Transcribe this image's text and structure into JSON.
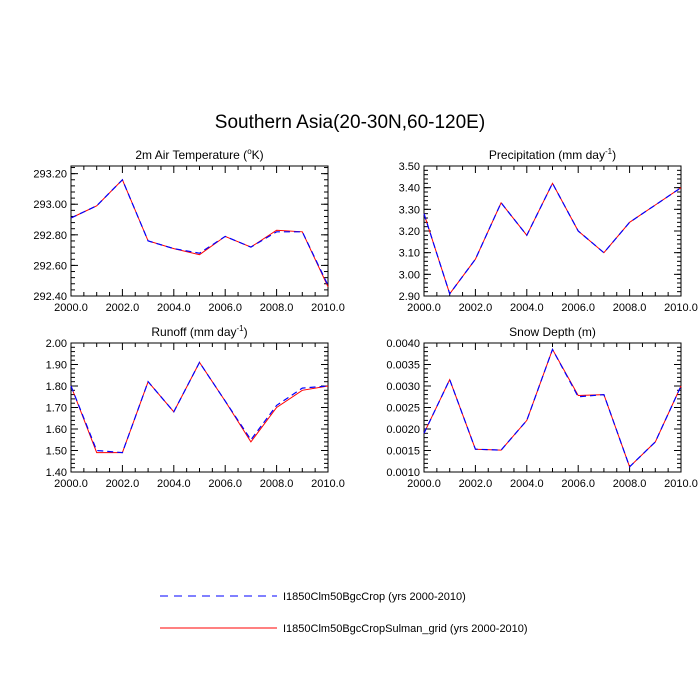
{
  "figure": {
    "title": "Southern Asia(20-30N,60-120E)",
    "legend": [
      {
        "label": "I1850Clm50BgcCrop (yrs 2000-2010)",
        "color": "#0000ff",
        "style": "dashed"
      },
      {
        "label": "I1850Clm50BgcCropSulman_grid (yrs 2000-2010)",
        "color": "#ff0000",
        "style": "solid"
      }
    ]
  },
  "chart_data": [
    {
      "type": "line",
      "title": "2m Air Temperature (°K)",
      "title_parts": [
        "2m Air Temperature (",
        "o",
        "K)"
      ],
      "x": [
        2000,
        2001,
        2002,
        2003,
        2004,
        2005,
        2006,
        2007,
        2008,
        2009,
        2010
      ],
      "xlim": [
        2000,
        2010
      ],
      "ylim": [
        292.4,
        293.25
      ],
      "xticks": [
        "2000.0",
        "2002.0",
        "2004.0",
        "2006.0",
        "2008.0",
        "2010.0"
      ],
      "yticks": [
        "292.40",
        "292.60",
        "292.80",
        "293.00",
        "293.20"
      ],
      "ytick_values": [
        292.4,
        292.6,
        292.8,
        293.0,
        293.2
      ],
      "series": [
        {
          "name": "I1850Clm50BgcCrop (yrs 2000-2010)",
          "values": [
            292.91,
            292.99,
            293.16,
            292.76,
            292.71,
            292.68,
            292.79,
            292.72,
            292.82,
            292.82,
            292.47
          ]
        },
        {
          "name": "I1850Clm50BgcCropSulman_grid (yrs 2000-2010)",
          "values": [
            292.91,
            292.99,
            293.16,
            292.76,
            292.71,
            292.67,
            292.79,
            292.72,
            292.83,
            292.82,
            292.46
          ]
        }
      ]
    },
    {
      "type": "line",
      "title": "Precipitation (mm day-1)",
      "title_parts": [
        "Precipitation (mm day",
        "-1",
        ")"
      ],
      "x": [
        2000,
        2001,
        2002,
        2003,
        2004,
        2005,
        2006,
        2007,
        2008,
        2009,
        2010
      ],
      "xlim": [
        2000,
        2010
      ],
      "ylim": [
        2.9,
        3.5
      ],
      "xticks": [
        "2000.0",
        "2002.0",
        "2004.0",
        "2006.0",
        "2008.0",
        "2010.0"
      ],
      "yticks": [
        "2.90",
        "3.00",
        "3.10",
        "3.20",
        "3.30",
        "3.40",
        "3.50"
      ],
      "ytick_values": [
        2.9,
        3.0,
        3.1,
        3.2,
        3.3,
        3.4,
        3.5
      ],
      "series": [
        {
          "name": "I1850Clm50BgcCrop (yrs 2000-2010)",
          "values": [
            3.28,
            2.91,
            3.07,
            3.33,
            3.18,
            3.42,
            3.2,
            3.1,
            3.24,
            3.32,
            3.4
          ]
        },
        {
          "name": "I1850Clm50BgcCropSulman_grid (yrs 2000-2010)",
          "values": [
            3.28,
            2.91,
            3.07,
            3.33,
            3.18,
            3.42,
            3.2,
            3.1,
            3.24,
            3.32,
            3.4
          ]
        }
      ]
    },
    {
      "type": "line",
      "title": "Runoff (mm day-1)",
      "title_parts": [
        "Runoff (mm day",
        "-1",
        ")"
      ],
      "x": [
        2000,
        2001,
        2002,
        2003,
        2004,
        2005,
        2006,
        2007,
        2008,
        2009,
        2010
      ],
      "xlim": [
        2000,
        2010
      ],
      "ylim": [
        1.4,
        2.0
      ],
      "xticks": [
        "2000.0",
        "2002.0",
        "2004.0",
        "2006.0",
        "2008.0",
        "2010.0"
      ],
      "yticks": [
        "1.40",
        "1.50",
        "1.60",
        "1.70",
        "1.80",
        "1.90",
        "2.00"
      ],
      "ytick_values": [
        1.4,
        1.5,
        1.6,
        1.7,
        1.8,
        1.9,
        2.0
      ],
      "series": [
        {
          "name": "I1850Clm50BgcCrop (yrs 2000-2010)",
          "values": [
            1.8,
            1.5,
            1.49,
            1.82,
            1.68,
            1.91,
            1.73,
            1.55,
            1.71,
            1.79,
            1.8
          ]
        },
        {
          "name": "I1850Clm50BgcCropSulman_grid (yrs 2000-2010)",
          "values": [
            1.8,
            1.49,
            1.49,
            1.82,
            1.68,
            1.91,
            1.73,
            1.54,
            1.7,
            1.78,
            1.8
          ]
        }
      ]
    },
    {
      "type": "line",
      "title": "Snow Depth (m)",
      "title_parts": [
        "Snow Depth (m)",
        "",
        ""
      ],
      "x": [
        2000,
        2001,
        2002,
        2003,
        2004,
        2005,
        2006,
        2007,
        2008,
        2009,
        2010
      ],
      "xlim": [
        2000,
        2010
      ],
      "ylim": [
        0.001,
        0.004
      ],
      "xticks": [
        "2000.0",
        "2002.0",
        "2004.0",
        "2006.0",
        "2008.0",
        "2010.0"
      ],
      "yticks": [
        "0.0010",
        "0.0015",
        "0.0020",
        "0.0025",
        "0.0030",
        "0.0035",
        "0.0040"
      ],
      "ytick_values": [
        0.001,
        0.0015,
        0.002,
        0.0025,
        0.003,
        0.0035,
        0.004
      ],
      "series": [
        {
          "name": "I1850Clm50BgcCrop (yrs 2000-2010)",
          "values": [
            0.0019,
            0.00315,
            0.00153,
            0.00151,
            0.0022,
            0.00385,
            0.00275,
            0.0028,
            0.00112,
            0.0017,
            0.003
          ]
        },
        {
          "name": "I1850Clm50BgcCropSulman_grid (yrs 2000-2010)",
          "values": [
            0.0019,
            0.00315,
            0.00153,
            0.00151,
            0.0022,
            0.00385,
            0.00278,
            0.0028,
            0.00112,
            0.0017,
            0.003
          ]
        }
      ]
    }
  ]
}
